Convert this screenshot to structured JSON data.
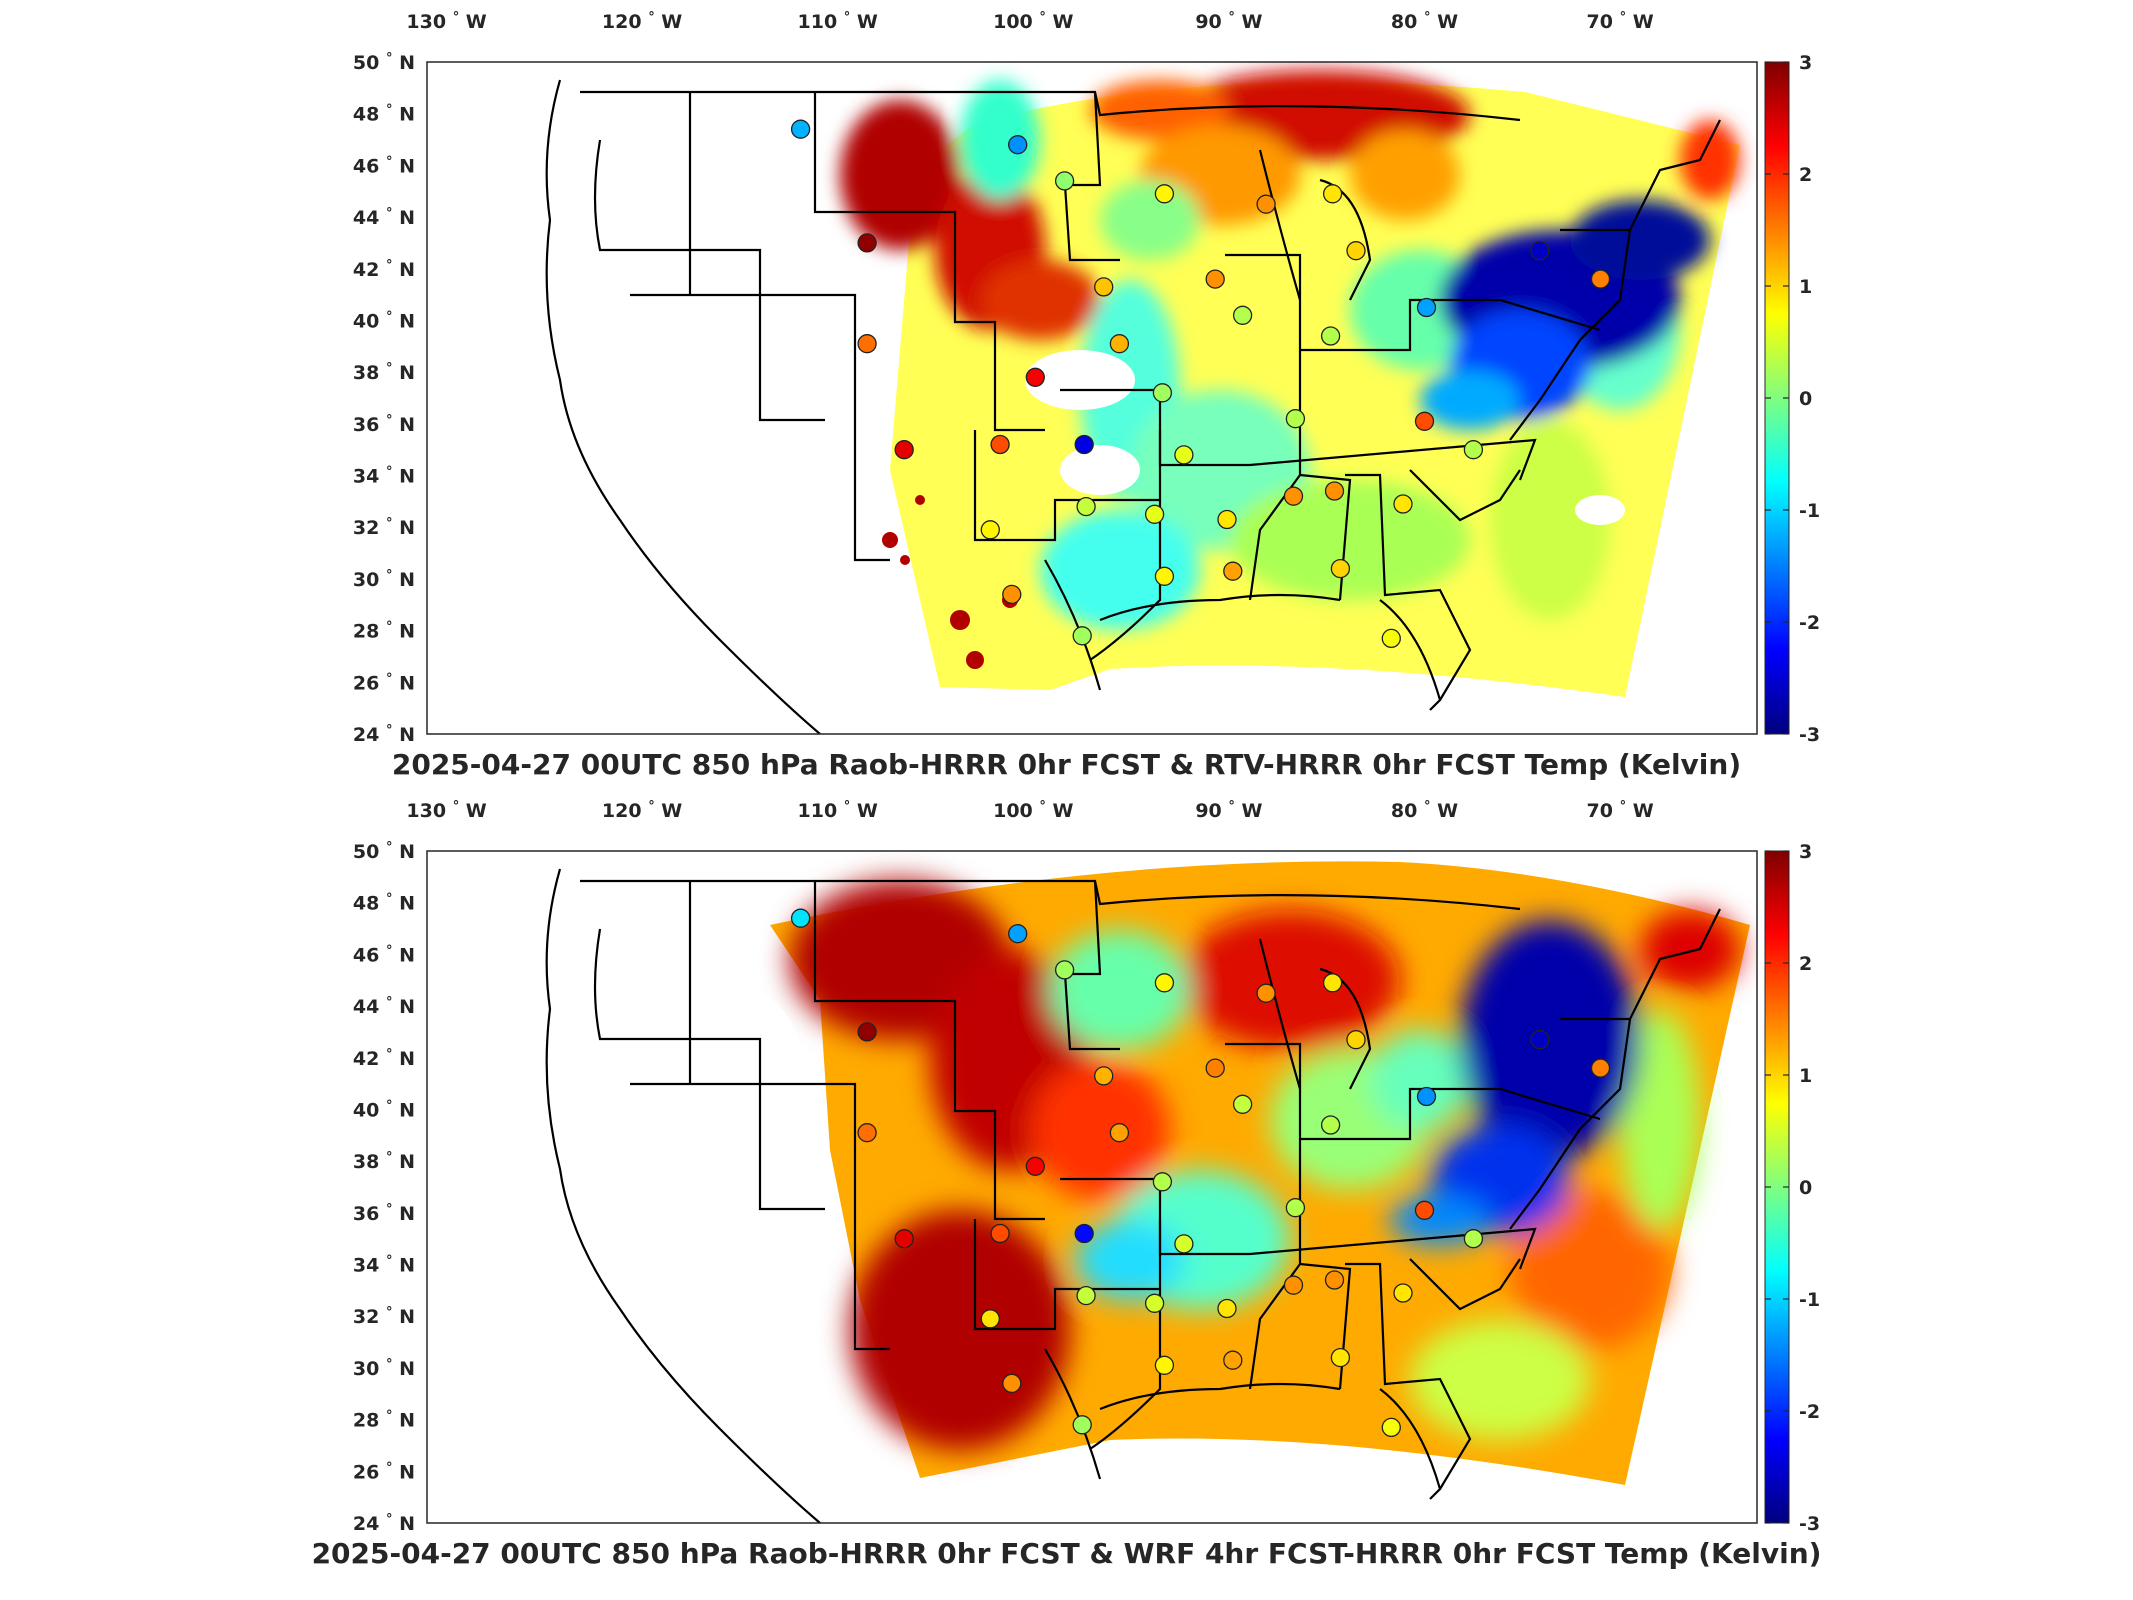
{
  "panels": [
    {
      "id": "top",
      "title": "2025-04-27 00UTC 850 hPa Raob-HRRR 0hr FCST & RTV-HRRR 0hr FCST Temp (Kelvin)"
    },
    {
      "id": "bottom",
      "title": "2025-04-27 00UTC 850 hPa Raob-HRRR 0hr FCST & WRF 4hr FCST-HRRR 0hr FCST Temp (Kelvin)"
    }
  ],
  "map": {
    "lon_ticks": [
      "130",
      "120",
      "110",
      "100",
      "90",
      "80",
      "70"
    ],
    "lon_hemisphere": "W",
    "lat_ticks": [
      "50",
      "48",
      "46",
      "44",
      "42",
      "40",
      "38",
      "36",
      "34",
      "32",
      "30",
      "28",
      "26",
      "24"
    ],
    "lat_hemisphere": "N",
    "degree_symbol": "°",
    "lon_range": [
      -131,
      -63
    ],
    "lat_range": [
      24,
      50
    ]
  },
  "colorbar": {
    "ticks": [
      "3",
      "2",
      "1",
      "0",
      "-1",
      "-2",
      "-3"
    ],
    "range": [
      -3,
      3
    ],
    "colormap": "jet",
    "colors": [
      "#00007f",
      "#0000ff",
      "#007fff",
      "#00ffff",
      "#7fff7f",
      "#ffff00",
      "#ff7f00",
      "#ff0000",
      "#7f0000"
    ]
  },
  "raob_stations": [
    {
      "lon": -111.9,
      "lat": 47.4,
      "top": -1.2,
      "bottom": -0.9
    },
    {
      "lon": -100.8,
      "lat": 46.8,
      "top": -1.4,
      "bottom": -1.3
    },
    {
      "lon": -98.4,
      "lat": 45.4,
      "top": 0.1,
      "bottom": 0.2
    },
    {
      "lon": -108.5,
      "lat": 43.0,
      "top": 2.9,
      "bottom": 2.9
    },
    {
      "lon": -93.3,
      "lat": 44.9,
      "top": 0.8,
      "bottom": 0.8
    },
    {
      "lon": -88.1,
      "lat": 44.5,
      "top": 1.4,
      "bottom": 1.4
    },
    {
      "lon": -84.7,
      "lat": 44.9,
      "top": 0.9,
      "bottom": 0.9
    },
    {
      "lon": -83.5,
      "lat": 42.7,
      "top": 1.0,
      "bottom": 1.0
    },
    {
      "lon": -96.4,
      "lat": 41.3,
      "top": 1.1,
      "bottom": 1.2
    },
    {
      "lon": -90.7,
      "lat": 41.6,
      "top": 1.4,
      "bottom": 1.5
    },
    {
      "lon": -108.5,
      "lat": 39.1,
      "top": 1.6,
      "bottom": 1.6
    },
    {
      "lon": -95.6,
      "lat": 39.1,
      "top": 1.2,
      "bottom": 1.3
    },
    {
      "lon": -89.3,
      "lat": 40.2,
      "top": 0.3,
      "bottom": 0.4
    },
    {
      "lon": -84.8,
      "lat": 39.4,
      "top": 0.3,
      "bottom": 0.3
    },
    {
      "lon": -99.9,
      "lat": 37.8,
      "top": 2.3,
      "bottom": 2.3
    },
    {
      "lon": -93.4,
      "lat": 37.2,
      "top": 0.2,
      "bottom": 0.3
    },
    {
      "lon": -79.9,
      "lat": 40.5,
      "top": -1.3,
      "bottom": -1.4
    },
    {
      "lon": -74.1,
      "lat": 42.7,
      "top": -2.6,
      "bottom": -2.6
    },
    {
      "lon": -71.0,
      "lat": 41.6,
      "top": 1.5,
      "bottom": 1.5
    },
    {
      "lon": -106.6,
      "lat": 35.0,
      "top": 2.4,
      "bottom": 2.4
    },
    {
      "lon": -101.7,
      "lat": 35.2,
      "top": 1.8,
      "bottom": 1.8
    },
    {
      "lon": -97.4,
      "lat": 35.2,
      "top": -2.4,
      "bottom": -2.2
    },
    {
      "lon": -86.6,
      "lat": 36.2,
      "top": 0.3,
      "bottom": 0.3
    },
    {
      "lon": -80.0,
      "lat": 36.1,
      "top": 1.8,
      "bottom": 1.8
    },
    {
      "lon": -77.5,
      "lat": 35.0,
      "top": 0.3,
      "bottom": 0.3
    },
    {
      "lon": -92.3,
      "lat": 34.8,
      "top": 0.6,
      "bottom": 0.5
    },
    {
      "lon": -102.2,
      "lat": 31.9,
      "top": 0.8,
      "bottom": 0.9
    },
    {
      "lon": -97.3,
      "lat": 32.8,
      "top": 0.4,
      "bottom": 0.4
    },
    {
      "lon": -93.8,
      "lat": 32.5,
      "top": 0.6,
      "bottom": 0.5
    },
    {
      "lon": -90.1,
      "lat": 32.3,
      "top": 0.9,
      "bottom": 0.9
    },
    {
      "lon": -86.7,
      "lat": 33.2,
      "top": 1.4,
      "bottom": 1.4
    },
    {
      "lon": -84.6,
      "lat": 33.4,
      "top": 1.4,
      "bottom": 1.4
    },
    {
      "lon": -81.1,
      "lat": 32.9,
      "top": 0.9,
      "bottom": 0.9
    },
    {
      "lon": -101.1,
      "lat": 29.4,
      "top": 1.4,
      "bottom": 1.4
    },
    {
      "lon": -97.5,
      "lat": 27.8,
      "top": 0.2,
      "bottom": 0.2
    },
    {
      "lon": -93.3,
      "lat": 30.1,
      "top": 0.8,
      "bottom": 0.8
    },
    {
      "lon": -89.8,
      "lat": 30.3,
      "top": 1.3,
      "bottom": 1.3
    },
    {
      "lon": -84.3,
      "lat": 30.4,
      "top": 1.0,
      "bottom": 0.9
    },
    {
      "lon": -81.7,
      "lat": 27.7,
      "top": 0.7,
      "bottom": 0.7
    }
  ]
}
